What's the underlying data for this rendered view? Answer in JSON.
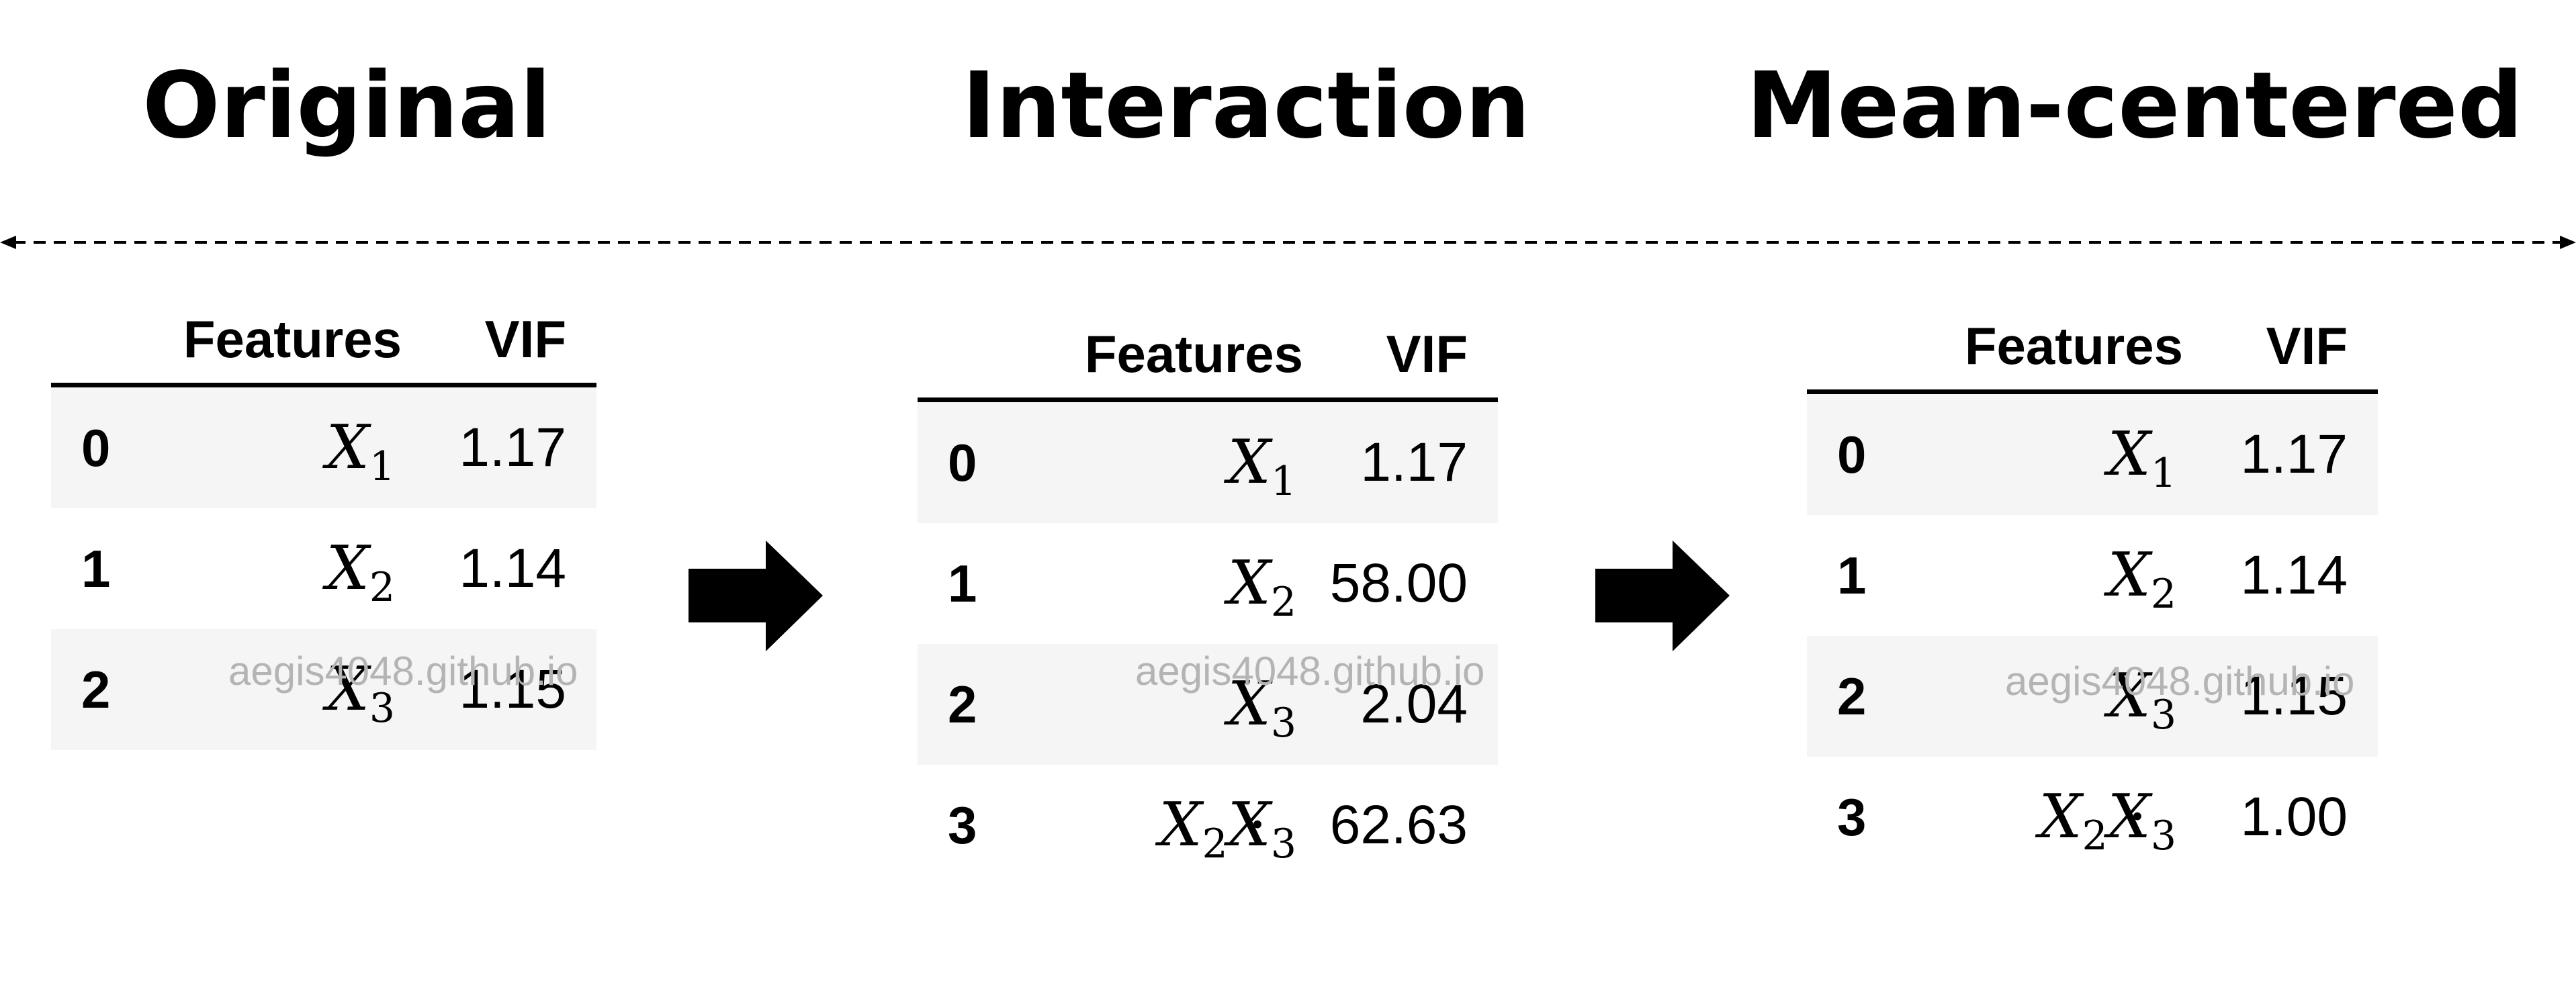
{
  "headings": [
    "Original",
    "Interaction",
    "Mean-centered"
  ],
  "watermark": "aegis4048.github.io",
  "table_headers": {
    "features": "Features",
    "vif": "VIF"
  },
  "tables": [
    {
      "rows": [
        {
          "index": "0",
          "feature": "X1",
          "vif": "1.17"
        },
        {
          "index": "1",
          "feature": "X2",
          "vif": "1.14"
        },
        {
          "index": "2",
          "feature": "X3",
          "vif": "1.15"
        }
      ]
    },
    {
      "rows": [
        {
          "index": "0",
          "feature": "X1",
          "vif": "1.17"
        },
        {
          "index": "1",
          "feature": "X2",
          "vif": "58.00"
        },
        {
          "index": "2",
          "feature": "X3",
          "vif": "2.04"
        },
        {
          "index": "3",
          "feature": "X2·X3",
          "vif": "62.63"
        }
      ]
    },
    {
      "rows": [
        {
          "index": "0",
          "feature": "X1",
          "vif": "1.17"
        },
        {
          "index": "1",
          "feature": "X2",
          "vif": "1.14"
        },
        {
          "index": "2",
          "feature": "X3",
          "vif": "1.15"
        },
        {
          "index": "3",
          "feature": "X2·X3",
          "vif": "1.00"
        }
      ]
    }
  ],
  "icons": {
    "arrow": "right-arrow-icon",
    "divider": "double-headed-dashed-arrow"
  }
}
